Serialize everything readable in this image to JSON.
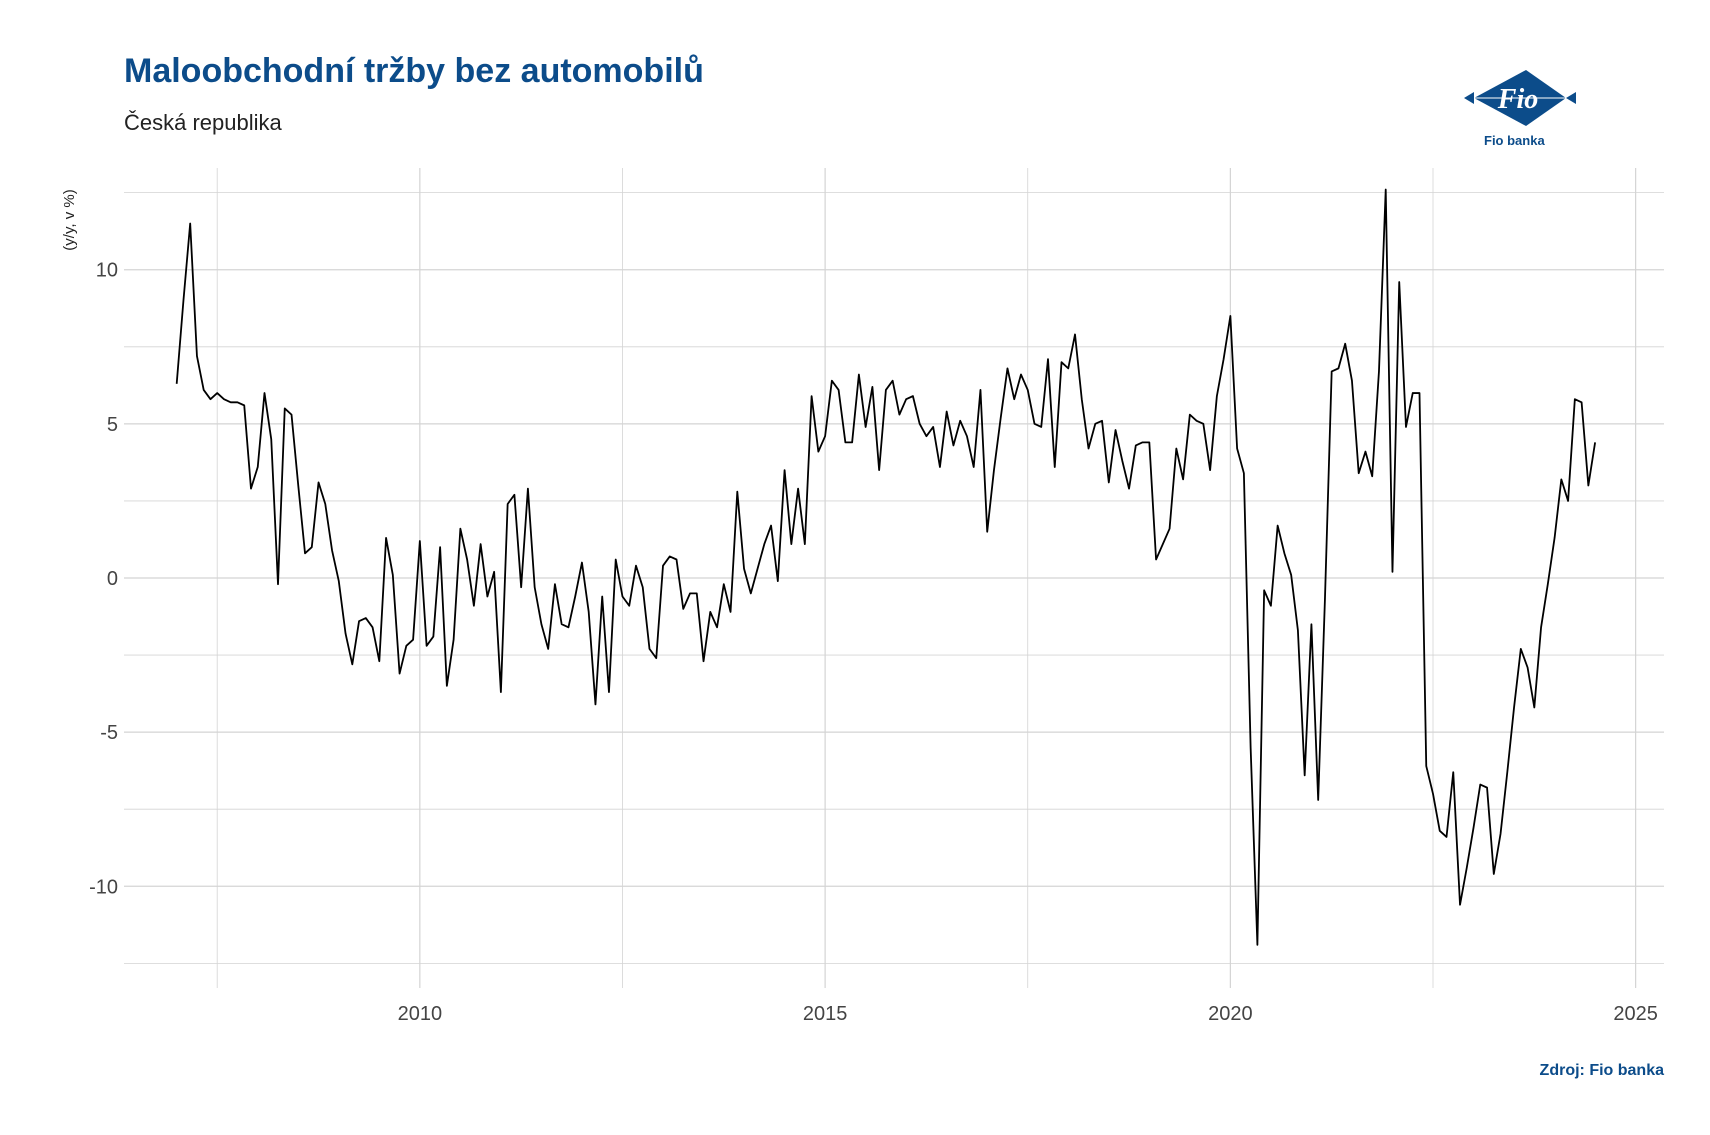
{
  "header": {
    "title": "Maloobchodní tržby bez automobilů",
    "subtitle": "Česká republika"
  },
  "logo": {
    "text": "Fio",
    "caption": "Fio banka",
    "icon": "fio-banka-logo-icon"
  },
  "footer": {
    "source": "Zdroj: Fio banka"
  },
  "colors": {
    "title": "#0c4c8a",
    "line": "#000000",
    "grid": "#d4d4d4",
    "logo_blue": "#0c4c8a"
  },
  "chart_data": {
    "type": "line",
    "title": "Maloobchodní tržby bez automobilů",
    "subtitle": "Česká republika",
    "xlabel": "",
    "ylabel": "(y/y, v %)",
    "xlim": [
      2006.35,
      2025.35
    ],
    "ylim": [
      -13.3,
      13.3
    ],
    "x_ticks": [
      2010,
      2015,
      2020,
      2025
    ],
    "x_tick_labels": [
      "2010",
      "2015",
      "2020",
      "2025"
    ],
    "y_ticks": [
      -10,
      -5,
      0,
      5,
      10
    ],
    "y_tick_labels": [
      "-10",
      "-5",
      "0",
      "5",
      "10"
    ],
    "grid": true,
    "legend": "none",
    "series": [
      {
        "start": "2007-01",
        "frequency": "monthly",
        "values": [
          6.3,
          9.0,
          11.5,
          7.2,
          6.1,
          5.8,
          6.0,
          5.8,
          5.7,
          5.7,
          5.6,
          2.9,
          3.6,
          6.0,
          4.5,
          -0.2,
          5.5,
          5.3,
          3.0,
          0.8,
          1.0,
          3.1,
          2.4,
          0.9,
          -0.1,
          -1.8,
          -2.8,
          -1.4,
          -1.3,
          -1.6,
          -2.7,
          1.3,
          0.1,
          -3.1,
          -2.2,
          -2.0,
          1.2,
          -2.2,
          -1.9,
          1.0,
          -3.5,
          -2.0,
          1.6,
          0.6,
          -0.9,
          1.1,
          -0.6,
          0.2,
          -3.7,
          2.4,
          2.7,
          -0.3,
          2.9,
          -0.3,
          -1.5,
          -2.3,
          -0.2,
          -1.5,
          -1.6,
          -0.6,
          0.5,
          -1.1,
          -4.1,
          -0.6,
          -3.7,
          0.6,
          -0.6,
          -0.9,
          0.4,
          -0.3,
          -2.3,
          -2.6,
          0.4,
          0.7,
          0.6,
          -1.0,
          -0.5,
          -0.5,
          -2.7,
          -1.1,
          -1.6,
          -0.2,
          -1.1,
          2.8,
          0.3,
          -0.5,
          0.3,
          1.1,
          1.7,
          -0.1,
          3.5,
          1.1,
          2.9,
          1.1,
          5.9,
          4.1,
          4.6,
          6.4,
          6.1,
          4.4,
          4.4,
          6.6,
          4.9,
          6.2,
          3.5,
          6.1,
          6.4,
          5.3,
          5.8,
          5.9,
          5.0,
          4.6,
          4.9,
          3.6,
          5.4,
          4.3,
          5.1,
          4.6,
          3.6,
          6.1,
          1.5,
          3.5,
          5.2,
          6.8,
          5.8,
          6.6,
          6.1,
          5.0,
          4.9,
          7.1,
          3.6,
          7.0,
          6.8,
          7.9,
          5.8,
          4.2,
          5.0,
          5.1,
          3.1,
          4.8,
          3.8,
          2.9,
          4.3,
          4.4,
          4.4,
          0.6,
          1.1,
          1.6,
          4.2,
          3.2,
          5.3,
          5.1,
          5.0,
          3.5,
          5.9,
          7.1,
          8.5,
          4.2,
          3.4,
          -5.5,
          -11.9,
          -0.4,
          -0.9,
          1.7,
          0.8,
          0.1,
          -1.7,
          -6.4,
          -1.5,
          -7.2,
          -0.7,
          6.7,
          6.8,
          7.6,
          6.4,
          3.4,
          4.1,
          3.3,
          6.7,
          12.6,
          0.2,
          9.6,
          4.9,
          6.0,
          6.0,
          -6.1,
          -7.0,
          -8.2,
          -8.4,
          -6.3,
          -10.6,
          -9.4,
          -8.1,
          -6.7,
          -6.8,
          -9.6,
          -8.3,
          -6.3,
          -4.2,
          -2.3,
          -2.9,
          -4.2,
          -1.6,
          -0.2,
          1.3,
          3.2,
          2.5,
          5.8,
          5.7,
          3.0,
          4.4
        ]
      }
    ]
  }
}
